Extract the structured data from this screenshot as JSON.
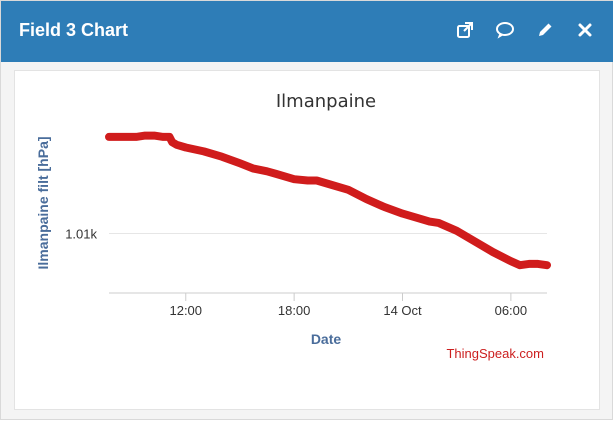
{
  "header": {
    "title": "Field 3 Chart",
    "icons": [
      {
        "name": "open-external-icon"
      },
      {
        "name": "comment-icon"
      },
      {
        "name": "edit-pencil-icon"
      },
      {
        "name": "close-icon"
      }
    ],
    "background": "#2e7db7"
  },
  "credit": "ThingSpeak.com",
  "chart_data": {
    "type": "line",
    "title": "Ilmanpaine",
    "xlabel": "Date",
    "ylabel": "Ilmanpaine filt [hPa]",
    "x_tick_labels": [
      "12:00",
      "18:00",
      "14 Oct",
      "06:00"
    ],
    "y_tick_labels": [
      "1.01k"
    ],
    "x_ticks_hours_from_start": [
      12,
      18,
      24,
      30
    ],
    "x_range_hours": [
      7.75,
      32.0
    ],
    "y_unit": "hPa",
    "ylim": [
      1005.5,
      1018.5
    ],
    "grid": true,
    "series_color": "#d01c1c",
    "series": [
      {
        "x": [
          7.75,
          8.5,
          9.25,
          9.75,
          10.25,
          10.75,
          11.1,
          11.25,
          11.5,
          12.0,
          13.0,
          14.0,
          15.0,
          15.75,
          16.5,
          17.0,
          18.0,
          18.75,
          19.25,
          20.0,
          21.0,
          22.0,
          23.0,
          24.0,
          24.75,
          25.5,
          26.0,
          27.0,
          28.0,
          29.0,
          30.0,
          30.5,
          31.0,
          31.5,
          32.0
        ],
        "y": [
          1017.3,
          1017.3,
          1017.3,
          1017.4,
          1017.4,
          1017.3,
          1017.3,
          1016.9,
          1016.7,
          1016.5,
          1016.2,
          1015.8,
          1015.3,
          1014.9,
          1014.7,
          1014.5,
          1014.1,
          1014.0,
          1014.0,
          1013.7,
          1013.3,
          1012.6,
          1012.0,
          1011.5,
          1011.2,
          1010.9,
          1010.8,
          1010.2,
          1009.4,
          1008.6,
          1007.9,
          1007.6,
          1007.7,
          1007.7,
          1007.6
        ]
      }
    ]
  }
}
